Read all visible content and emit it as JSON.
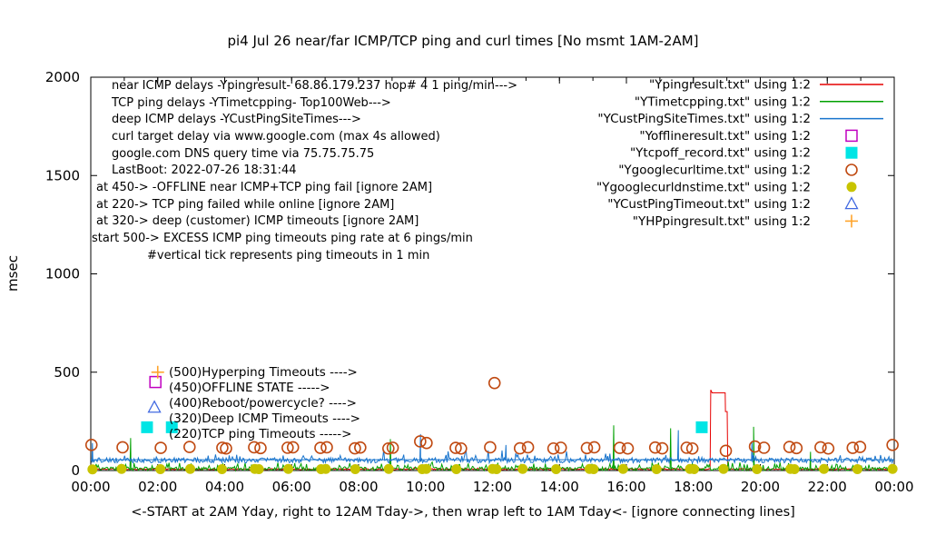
{
  "chart_data": {
    "type": "line",
    "title": "pi4 Jul 26  near/far ICMP/TCP ping and curl times [No msmt 1AM-2AM]",
    "ylabel": "msec",
    "caption": "<-START at 2AM Yday, right to 12AM Tday->, then wrap left to 1AM Tday<- [ignore connecting lines]",
    "grid": false,
    "legend_position": "top-right-inside",
    "xlim_hours": [
      0,
      24
    ],
    "ylim": [
      0,
      2000
    ],
    "x_ticks": [
      "00:00",
      "02:00",
      "04:00",
      "06:00",
      "08:00",
      "10:00",
      "12:00",
      "14:00",
      "16:00",
      "18:00",
      "20:00",
      "22:00",
      "00:00"
    ],
    "y_ticks": [
      0,
      500,
      1000,
      1500,
      2000
    ],
    "notes": [
      {
        "x": 123,
        "y": 98,
        "text": "near ICMP delays -Ypingresult- 68.86.179.237 hop# 4 1 ping/min--->"
      },
      {
        "x": 123,
        "y": 117,
        "text": "TCP ping delays -YTimetcpping- Top100Web--->"
      },
      {
        "x": 123,
        "y": 135,
        "text": "deep ICMP delays -YCustPingSiteTimes--->"
      },
      {
        "x": 123,
        "y": 154,
        "text": "curl target delay via www.google.com (max 4s allowed)"
      },
      {
        "x": 123,
        "y": 173,
        "text": "google.com DNS query time via 75.75.75.75"
      },
      {
        "x": 123,
        "y": 191,
        "text": "LastBoot: 2022-07-26 18:31:44"
      },
      {
        "x": 106,
        "y": 210,
        "text": "at 450-> -OFFLINE near ICMP+TCP ping fail [ignore 2AM]"
      },
      {
        "x": 106,
        "y": 229,
        "text": "at 220-> TCP ping failed while online [ignore 2AM]"
      },
      {
        "x": 106,
        "y": 247,
        "text": "at 320-> deep (customer) ICMP timeouts [ignore 2AM]"
      },
      {
        "x": 101,
        "y": 266,
        "text": "start 500-> EXCESS ICMP ping timeouts ping rate at 6 pings/min"
      },
      {
        "x": 162,
        "y": 285,
        "text": "#vertical tick represents ping timeouts in 1 min"
      }
    ],
    "level_labels": [
      {
        "x": 186,
        "y": 414,
        "text": "(500)Hyperping Timeouts ---->"
      },
      {
        "x": 186,
        "y": 431,
        "text": "(450)OFFLINE STATE ----->"
      },
      {
        "x": 186,
        "y": 448,
        "text": "(400)Reboot/powercycle? ---->"
      },
      {
        "x": 186,
        "y": 465,
        "text": "(320)Deep ICMP Timeouts ---->"
      },
      {
        "x": 186,
        "y": 482,
        "text": "(220)TCP ping Timeouts ----->"
      }
    ],
    "series": [
      {
        "name": "Ypingresult",
        "color": "#e60000",
        "seed": 11,
        "noise": {
          "mean": 7,
          "jitter": 3,
          "spike_prob": 0.02,
          "spike_extra": 8
        },
        "spikes": [],
        "segments": [
          [
            18.5,
            8
          ],
          [
            18.52,
            410
          ],
          [
            18.56,
            395
          ],
          [
            18.95,
            395
          ],
          [
            18.96,
            300
          ],
          [
            19.01,
            300
          ],
          [
            19.03,
            8
          ]
        ]
      },
      {
        "name": "YTimetcpping",
        "color": "#00a000",
        "seed": 23,
        "noise": {
          "mean": 9,
          "jitter": 9,
          "spike_prob": 0.14,
          "spike_extra": 30
        },
        "spikes": [
          [
            1.19,
            165
          ],
          [
            8.95,
            160
          ],
          [
            15.62,
            230
          ],
          [
            17.32,
            215
          ],
          [
            19.8,
            222
          ],
          [
            21.5,
            95
          ]
        ],
        "segments": []
      },
      {
        "name": "YCustPingSiteTimes",
        "color": "#1874cd",
        "seed": 37,
        "flat_line": 55,
        "noise": {
          "mean": 52,
          "jitter": 13,
          "spike_prob": 0.1,
          "spike_extra": 45
        },
        "spikes": [
          [
            0.05,
            140
          ],
          [
            9.85,
            185
          ],
          [
            12.4,
            130
          ],
          [
            17.55,
            205
          ],
          [
            19.75,
            150
          ]
        ],
        "segments": []
      }
    ],
    "marker_series": [
      {
        "name": "Yofflineresult",
        "marker": "square-open",
        "color": "#c000c0",
        "points": [
          [
            1.93,
            450
          ]
        ]
      },
      {
        "name": "Ytcpoff_record",
        "marker": "square-filled",
        "color": "#00e5e5",
        "points": [
          [
            1.68,
            220
          ],
          [
            2.42,
            220
          ],
          [
            18.25,
            220
          ]
        ]
      },
      {
        "name": "Ygooglecurltime",
        "marker": "circle-open",
        "color": "#c04a12",
        "points": [
          [
            0.02,
            130
          ],
          [
            0.95,
            118
          ],
          [
            2.09,
            115
          ],
          [
            2.95,
            120
          ],
          [
            3.93,
            116
          ],
          [
            4.04,
            112
          ],
          [
            4.88,
            118
          ],
          [
            5.07,
            114
          ],
          [
            5.88,
            116
          ],
          [
            6.04,
            118
          ],
          [
            6.86,
            115
          ],
          [
            7.05,
            118
          ],
          [
            7.89,
            113
          ],
          [
            8.05,
            117
          ],
          [
            8.89,
            112
          ],
          [
            9.02,
            116
          ],
          [
            9.84,
            148
          ],
          [
            10.03,
            140
          ],
          [
            10.9,
            115
          ],
          [
            11.06,
            112
          ],
          [
            11.93,
            118
          ],
          [
            12.06,
            445
          ],
          [
            12.82,
            113
          ],
          [
            13.06,
            118
          ],
          [
            13.82,
            112
          ],
          [
            14.04,
            116
          ],
          [
            14.82,
            114
          ],
          [
            15.04,
            118
          ],
          [
            15.8,
            115
          ],
          [
            16.04,
            112
          ],
          [
            16.86,
            117
          ],
          [
            17.07,
            113
          ],
          [
            17.8,
            116
          ],
          [
            17.97,
            112
          ],
          [
            18.97,
            100
          ],
          [
            19.84,
            122
          ],
          [
            20.11,
            116
          ],
          [
            20.87,
            120
          ],
          [
            21.08,
            114
          ],
          [
            21.8,
            118
          ],
          [
            22.03,
            112
          ],
          [
            22.76,
            115
          ],
          [
            22.98,
            120
          ],
          [
            23.95,
            130
          ]
        ]
      },
      {
        "name": "Ygooglecurldnstime",
        "marker": "circle-filled",
        "color": "#c8c400",
        "points": [
          [
            0.05,
            6
          ],
          [
            0.92,
            8
          ],
          [
            2.08,
            7
          ],
          [
            2.97,
            8
          ],
          [
            3.92,
            7
          ],
          [
            4.9,
            8
          ],
          [
            5.02,
            7
          ],
          [
            5.9,
            8
          ],
          [
            6.88,
            7
          ],
          [
            7.02,
            8
          ],
          [
            7.9,
            7
          ],
          [
            8.9,
            8
          ],
          [
            9.9,
            7
          ],
          [
            10.02,
            8
          ],
          [
            10.92,
            7
          ],
          [
            12.0,
            8
          ],
          [
            12.12,
            7
          ],
          [
            12.9,
            8
          ],
          [
            13.9,
            7
          ],
          [
            14.9,
            8
          ],
          [
            15.02,
            7
          ],
          [
            15.9,
            8
          ],
          [
            16.9,
            7
          ],
          [
            17.9,
            8
          ],
          [
            18.02,
            7
          ],
          [
            18.9,
            8
          ],
          [
            19.9,
            7
          ],
          [
            20.9,
            8
          ],
          [
            21.02,
            7
          ],
          [
            21.9,
            8
          ],
          [
            22.9,
            7
          ],
          [
            23.95,
            8
          ]
        ]
      },
      {
        "name": "YCustPingTimeout",
        "marker": "triangle-open",
        "color": "#4169e1",
        "points": [
          [
            1.9,
            320
          ]
        ]
      },
      {
        "name": "YHPpingresult",
        "marker": "plus",
        "color": "#ffa42b",
        "points": [
          [
            2.0,
            500
          ]
        ]
      }
    ],
    "legend": {
      "rows": [
        {
          "label": "\"Ypingresult.txt\" using 1:2",
          "marker": "line",
          "color": "#e60000"
        },
        {
          "label": "\"YTimetcpping.txt\" using 1:2",
          "marker": "line",
          "color": "#00a000"
        },
        {
          "label": "\"YCustPingSiteTimes.txt\" using 1:2",
          "marker": "line",
          "color": "#1874cd"
        },
        {
          "label": "\"Yofflineresult.txt\" using 1:2",
          "marker": "square-open",
          "color": "#c000c0"
        },
        {
          "label": "\"Ytcpoff_record.txt\" using 1:2",
          "marker": "square-filled",
          "color": "#00e5e5"
        },
        {
          "label": "\"Ygooglecurltime.txt\" using 1:2",
          "marker": "circle-open",
          "color": "#c04a12"
        },
        {
          "label": "\"Ygooglecurldnstime.txt\" using 1:2",
          "marker": "circle-filled",
          "color": "#c8c400"
        },
        {
          "label": "\"YCustPingTimeout.txt\" using 1:2",
          "marker": "triangle-open",
          "color": "#4169e1"
        },
        {
          "label": "\"YHPpingresult.txt\" using 1:2",
          "marker": "plus",
          "color": "#ffa42b"
        }
      ]
    }
  }
}
